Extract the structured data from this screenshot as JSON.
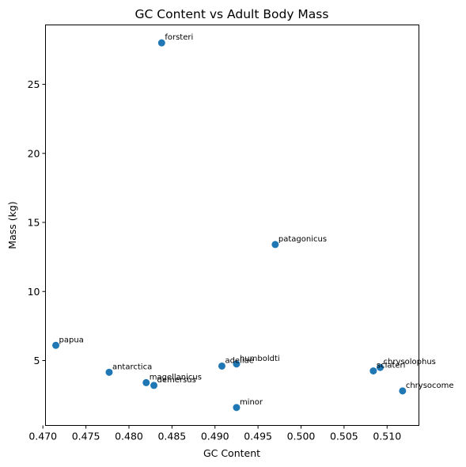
{
  "chart_data": {
    "type": "scatter",
    "title": "GC Content vs Adult Body Mass",
    "xlabel": "GC Content",
    "ylabel": "Mass (kg)",
    "xlim": [
      0.4703,
      0.5137
    ],
    "ylim": [
      0.3,
      29.3
    ],
    "xticks": [
      0.47,
      0.475,
      0.48,
      0.485,
      0.49,
      0.495,
      0.5,
      0.505,
      0.51
    ],
    "xtick_labels": [
      "0.470",
      "0.475",
      "0.480",
      "0.485",
      "0.490",
      "0.495",
      "0.500",
      "0.505",
      "0.510"
    ],
    "yticks": [
      5,
      10,
      15,
      20,
      25
    ],
    "ytick_labels": [
      "5",
      "10",
      "15",
      "20",
      "25"
    ],
    "marker_color": "#1f77b4",
    "grid": false,
    "points": [
      {
        "label": "forsteri",
        "x": 0.4838,
        "y": 28.0
      },
      {
        "label": "patagonicus",
        "x": 0.497,
        "y": 13.4
      },
      {
        "label": "papua",
        "x": 0.4715,
        "y": 6.1
      },
      {
        "label": "antarctica",
        "x": 0.4777,
        "y": 4.15
      },
      {
        "label": "magellanicus",
        "x": 0.482,
        "y": 3.4
      },
      {
        "label": "demersus",
        "x": 0.4829,
        "y": 3.2
      },
      {
        "label": "adeliae",
        "x": 0.4908,
        "y": 4.6
      },
      {
        "label": "humboldti",
        "x": 0.4925,
        "y": 4.75
      },
      {
        "label": "minor",
        "x": 0.4925,
        "y": 1.6
      },
      {
        "label": "sclateri",
        "x": 0.5084,
        "y": 4.25
      },
      {
        "label": "chrysolophus",
        "x": 0.5092,
        "y": 4.5
      },
      {
        "label": "chrysocome",
        "x": 0.5118,
        "y": 2.8
      }
    ]
  }
}
